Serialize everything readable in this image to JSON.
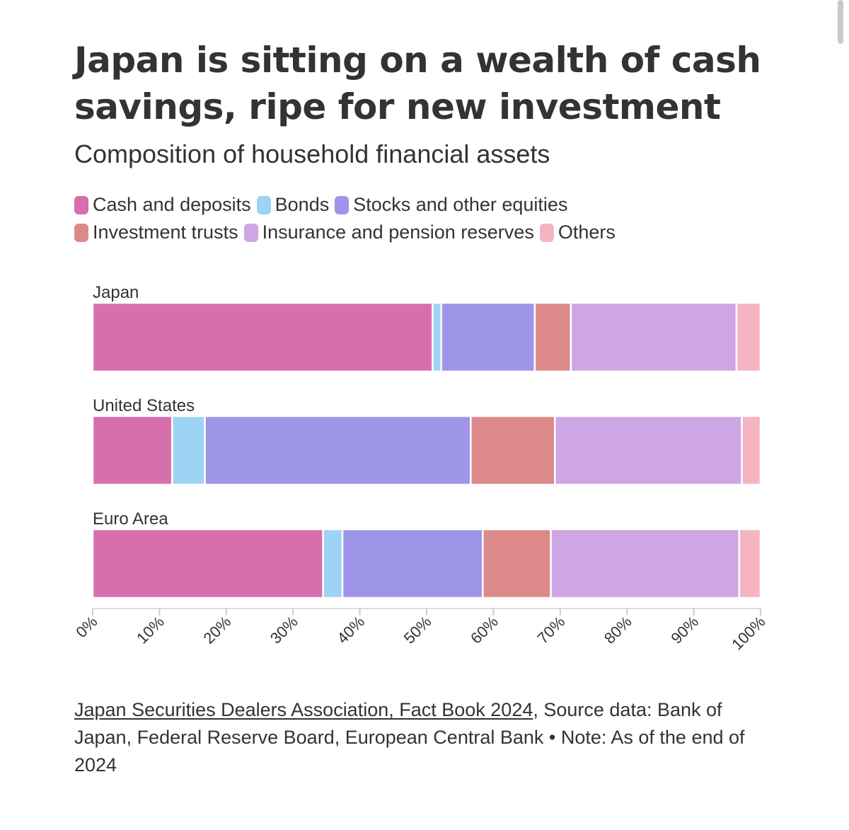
{
  "title": "Japan is sitting on a wealth of cash savings, ripe for new investment",
  "subtitle": "Composition of household financial assets",
  "legend": [
    {
      "label": "Cash and deposits",
      "color": "#d86fad"
    },
    {
      "label": "Bonds",
      "color": "#9dd4f3"
    },
    {
      "label": "Stocks and other equities",
      "color": "#9f95e8"
    },
    {
      "label": "Investment trusts",
      "color": "#dc8a89"
    },
    {
      "label": "Insurance and pension reserves",
      "color": "#cea6e3"
    },
    {
      "label": "Others",
      "color": "#f4b4c1"
    }
  ],
  "chart_data": {
    "type": "bar",
    "orientation": "horizontal",
    "stacked": true,
    "categories": [
      "Japan",
      "United States",
      "Euro Area"
    ],
    "series": [
      {
        "name": "Cash and deposits",
        "color": "#d86fad",
        "values": [
          50.9,
          11.9,
          34.5
        ]
      },
      {
        "name": "Bonds",
        "color": "#9dd4f3",
        "values": [
          1.3,
          4.9,
          2.9
        ]
      },
      {
        "name": "Stocks and other equities",
        "color": "#9f95e8",
        "values": [
          14.0,
          39.8,
          21.0
        ]
      },
      {
        "name": "Investment trusts",
        "color": "#dc8a89",
        "values": [
          5.4,
          12.6,
          10.2
        ]
      },
      {
        "name": "Insurance and pension reserves",
        "color": "#cea6e3",
        "values": [
          24.8,
          28.0,
          28.2
        ]
      },
      {
        "name": "Others",
        "color": "#f4b4c1",
        "values": [
          3.6,
          2.8,
          3.2
        ]
      }
    ],
    "x_ticks": [
      "0%",
      "10%",
      "20%",
      "30%",
      "40%",
      "50%",
      "60%",
      "70%",
      "80%",
      "90%",
      "100%"
    ],
    "xlim": [
      0,
      100
    ],
    "grid": false
  },
  "footer": {
    "source_link": "Japan Securities Dealers Association, Fact Book 2024",
    "source_text": ", Source data: Bank of Japan, Federal Reserve Board, European Central Bank • Note: As of the end of 2024"
  }
}
